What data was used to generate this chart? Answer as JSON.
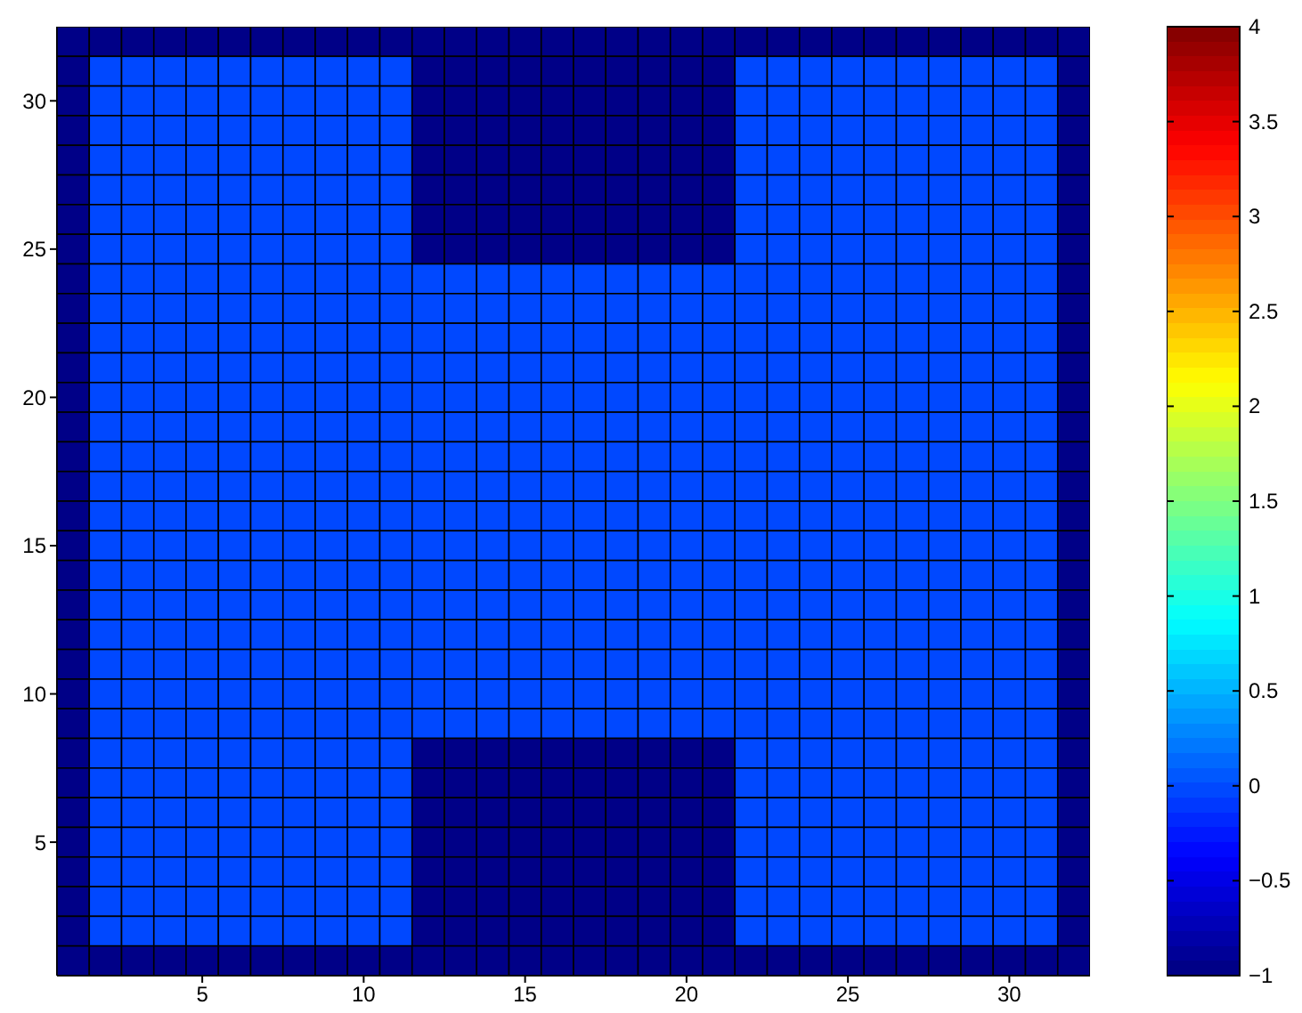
{
  "chart_data": {
    "type": "heatmap",
    "categories": [
      null,
      null,
      null,
      null,
      "5",
      null,
      null,
      null,
      null,
      "10",
      null,
      null,
      null,
      null,
      "15",
      null,
      null,
      null,
      null,
      "20",
      null,
      null,
      null,
      null,
      "25",
      null,
      null,
      null,
      null,
      "30",
      null,
      null
    ],
    "y_categories": [
      null,
      null,
      "30",
      null,
      null,
      null,
      null,
      "25",
      null,
      null,
      null,
      null,
      "20",
      null,
      null,
      null,
      null,
      "15",
      null,
      null,
      null,
      null,
      "10",
      null,
      null,
      null,
      null,
      "5",
      null,
      null,
      null,
      null
    ],
    "clim": [
      -1,
      4
    ],
    "cticks": [
      {
        "value": -1,
        "label": "−1"
      },
      {
        "value": -0.5,
        "label": "−0.5"
      },
      0,
      0.5,
      1,
      1.5,
      2,
      2.5,
      3,
      3.5,
      4
    ],
    "cells": [
      [
        -1,
        -1,
        -1,
        -1,
        -1,
        -1,
        -1,
        -1,
        -1,
        -1,
        -1,
        -1,
        -1,
        -1,
        -1,
        -1,
        -1,
        -1,
        -1,
        -1,
        -1,
        -1,
        -1,
        -1,
        -1,
        -1,
        -1,
        -1,
        -1,
        -1,
        -1,
        -1
      ],
      [
        -1,
        0,
        0,
        0,
        0,
        0,
        0,
        0,
        0,
        0,
        0,
        -1,
        -1,
        -1,
        -1,
        -1,
        -1,
        -1,
        -1,
        -1,
        -1,
        0,
        0,
        0,
        0,
        0,
        0,
        0,
        0,
        0,
        0,
        -1
      ],
      [
        -1,
        0,
        0,
        0,
        0,
        0,
        0,
        0,
        0,
        0,
        0,
        -1,
        -1,
        -1,
        -1,
        -1,
        -1,
        -1,
        -1,
        -1,
        -1,
        0,
        0,
        0,
        0,
        0,
        0,
        0,
        0,
        0,
        0,
        -1
      ],
      [
        -1,
        0,
        0,
        0,
        0,
        0,
        0,
        0,
        0,
        0,
        0,
        -1,
        -1,
        -1,
        -1,
        -1,
        -1,
        -1,
        -1,
        -1,
        -1,
        0,
        0,
        0,
        0,
        0,
        0,
        0,
        0,
        0,
        0,
        -1
      ],
      [
        -1,
        0,
        0,
        0,
        0,
        0,
        0,
        0,
        0,
        0,
        0,
        -1,
        -1,
        -1,
        -1,
        -1,
        -1,
        -1,
        -1,
        -1,
        -1,
        0,
        0,
        0,
        0,
        0,
        0,
        0,
        0,
        0,
        0,
        -1
      ],
      [
        -1,
        0,
        0,
        0,
        0,
        0,
        0,
        0,
        0,
        0,
        0,
        -1,
        -1,
        -1,
        -1,
        -1,
        -1,
        -1,
        -1,
        -1,
        -1,
        0,
        0,
        0,
        0,
        0,
        0,
        0,
        0,
        0,
        0,
        -1
      ],
      [
        -1,
        0,
        0,
        0,
        0,
        0,
        0,
        0,
        0,
        0,
        0,
        -1,
        -1,
        -1,
        -1,
        -1,
        -1,
        -1,
        -1,
        -1,
        -1,
        0,
        0,
        0,
        0,
        0,
        0,
        0,
        0,
        0,
        0,
        -1
      ],
      [
        -1,
        0,
        0,
        0,
        0,
        0,
        0,
        0,
        0,
        0,
        0,
        -1,
        -1,
        -1,
        -1,
        -1,
        -1,
        -1,
        -1,
        -1,
        -1,
        0,
        0,
        0,
        0,
        0,
        0,
        0,
        0,
        0,
        0,
        -1
      ],
      [
        -1,
        0,
        0,
        0,
        0,
        0,
        0,
        0,
        0,
        0,
        0,
        0,
        0,
        0,
        0,
        0,
        0,
        0,
        0,
        0,
        0,
        0,
        0,
        0,
        0,
        0,
        0,
        0,
        0,
        0,
        0,
        -1
      ],
      [
        -1,
        0,
        0,
        0,
        0,
        0,
        0,
        0,
        0,
        0,
        0,
        0,
        0,
        0,
        0,
        0,
        0,
        0,
        0,
        0,
        0,
        0,
        0,
        0,
        0,
        0,
        0,
        0,
        0,
        0,
        0,
        -1
      ],
      [
        -1,
        0,
        0,
        0,
        0,
        0,
        0,
        0,
        0,
        0,
        0,
        0,
        0,
        0,
        0,
        0,
        0,
        0,
        0,
        0,
        0,
        0,
        0,
        0,
        0,
        0,
        0,
        0,
        0,
        0,
        0,
        -1
      ],
      [
        -1,
        0,
        0,
        0,
        0,
        0,
        0,
        0,
        0,
        0,
        0,
        0,
        0,
        0,
        0,
        0,
        0,
        0,
        0,
        0,
        0,
        0,
        0,
        0,
        0,
        0,
        0,
        0,
        0,
        0,
        0,
        -1
      ],
      [
        -1,
        0,
        0,
        0,
        0,
        0,
        0,
        0,
        0,
        0,
        0,
        0,
        0,
        0,
        0,
        0,
        0,
        0,
        0,
        0,
        0,
        0,
        0,
        0,
        0,
        0,
        0,
        0,
        0,
        0,
        0,
        -1
      ],
      [
        -1,
        0,
        0,
        0,
        0,
        0,
        0,
        0,
        0,
        0,
        0,
        0,
        0,
        0,
        0,
        0,
        0,
        0,
        0,
        0,
        0,
        0,
        0,
        0,
        0,
        0,
        0,
        0,
        0,
        0,
        0,
        -1
      ],
      [
        -1,
        0,
        0,
        0,
        0,
        0,
        0,
        0,
        0,
        0,
        0,
        0,
        0,
        0,
        0,
        0,
        0,
        0,
        0,
        0,
        0,
        0,
        0,
        0,
        0,
        0,
        0,
        0,
        0,
        0,
        0,
        -1
      ],
      [
        -1,
        0,
        0,
        0,
        0,
        0,
        0,
        0,
        0,
        0,
        0,
        0,
        0,
        0,
        0,
        0,
        0,
        0,
        0,
        0,
        0,
        0,
        0,
        0,
        0,
        0,
        0,
        0,
        0,
        0,
        0,
        -1
      ],
      [
        -1,
        0,
        0,
        0,
        0,
        0,
        0,
        0,
        0,
        0,
        0,
        0,
        0,
        0,
        0,
        0,
        0,
        0,
        0,
        0,
        0,
        0,
        0,
        0,
        0,
        0,
        0,
        0,
        0,
        0,
        0,
        -1
      ],
      [
        -1,
        0,
        0,
        0,
        0,
        0,
        0,
        0,
        0,
        0,
        0,
        0,
        0,
        0,
        0,
        0,
        0,
        0,
        0,
        0,
        0,
        0,
        0,
        0,
        0,
        0,
        0,
        0,
        0,
        0,
        0,
        -1
      ],
      [
        -1,
        0,
        0,
        0,
        0,
        0,
        0,
        0,
        0,
        0,
        0,
        0,
        0,
        0,
        0,
        0,
        0,
        0,
        0,
        0,
        0,
        0,
        0,
        0,
        0,
        0,
        0,
        0,
        0,
        0,
        0,
        -1
      ],
      [
        -1,
        0,
        0,
        0,
        0,
        0,
        0,
        0,
        0,
        0,
        0,
        0,
        0,
        0,
        0,
        0,
        0,
        0,
        0,
        0,
        0,
        0,
        0,
        0,
        0,
        0,
        0,
        0,
        0,
        0,
        0,
        -1
      ],
      [
        -1,
        0,
        0,
        0,
        0,
        0,
        0,
        0,
        0,
        0,
        0,
        0,
        0,
        0,
        0,
        0,
        0,
        0,
        0,
        0,
        0,
        0,
        0,
        0,
        0,
        0,
        0,
        0,
        0,
        0,
        0,
        -1
      ],
      [
        -1,
        0,
        0,
        0,
        0,
        0,
        0,
        0,
        0,
        0,
        0,
        0,
        0,
        0,
        0,
        0,
        0,
        0,
        0,
        0,
        0,
        0,
        0,
        0,
        0,
        0,
        0,
        0,
        0,
        0,
        0,
        -1
      ],
      [
        -1,
        0,
        0,
        0,
        0,
        0,
        0,
        0,
        0,
        0,
        0,
        0,
        0,
        0,
        0,
        0,
        0,
        0,
        0,
        0,
        0,
        0,
        0,
        0,
        0,
        0,
        0,
        0,
        0,
        0,
        0,
        -1
      ],
      [
        -1,
        0,
        0,
        0,
        0,
        0,
        0,
        0,
        0,
        0,
        0,
        0,
        0,
        0,
        0,
        0,
        0,
        0,
        0,
        0,
        0,
        0,
        0,
        0,
        0,
        0,
        0,
        0,
        0,
        0,
        0,
        -1
      ],
      [
        -1,
        0,
        0,
        0,
        0,
        0,
        0,
        0,
        0,
        0,
        0,
        -1,
        -1,
        -1,
        -1,
        -1,
        -1,
        -1,
        -1,
        -1,
        -1,
        0,
        0,
        0,
        0,
        0,
        0,
        0,
        0,
        0,
        0,
        -1
      ],
      [
        -1,
        0,
        0,
        0,
        0,
        0,
        0,
        0,
        0,
        0,
        0,
        -1,
        -1,
        -1,
        -1,
        -1,
        -1,
        -1,
        -1,
        -1,
        -1,
        0,
        0,
        0,
        0,
        0,
        0,
        0,
        0,
        0,
        0,
        -1
      ],
      [
        -1,
        0,
        0,
        0,
        0,
        0,
        0,
        0,
        0,
        0,
        0,
        -1,
        -1,
        -1,
        -1,
        -1,
        -1,
        -1,
        -1,
        -1,
        -1,
        0,
        0,
        0,
        0,
        0,
        0,
        0,
        0,
        0,
        0,
        -1
      ],
      [
        -1,
        0,
        0,
        0,
        0,
        0,
        0,
        0,
        0,
        0,
        0,
        -1,
        -1,
        -1,
        -1,
        -1,
        -1,
        -1,
        -1,
        -1,
        -1,
        0,
        0,
        0,
        0,
        0,
        0,
        0,
        0,
        0,
        0,
        -1
      ],
      [
        -1,
        0,
        0,
        0,
        0,
        0,
        0,
        0,
        0,
        0,
        0,
        -1,
        -1,
        -1,
        -1,
        -1,
        -1,
        -1,
        -1,
        -1,
        -1,
        0,
        0,
        0,
        0,
        0,
        0,
        0,
        0,
        0,
        0,
        -1
      ],
      [
        -1,
        0,
        0,
        0,
        0,
        0,
        0,
        0,
        0,
        0,
        0,
        -1,
        -1,
        -1,
        -1,
        -1,
        -1,
        -1,
        -1,
        -1,
        -1,
        0,
        0,
        0,
        0,
        0,
        0,
        0,
        0,
        0,
        0,
        -1
      ],
      [
        -1,
        0,
        0,
        0,
        0,
        0,
        0,
        0,
        0,
        0,
        0,
        -1,
        -1,
        -1,
        -1,
        -1,
        -1,
        -1,
        -1,
        -1,
        -1,
        0,
        0,
        0,
        0,
        0,
        0,
        0,
        0,
        0,
        0,
        -1
      ],
      [
        -1,
        -1,
        -1,
        -1,
        -1,
        -1,
        -1,
        -1,
        -1,
        -1,
        -1,
        -1,
        -1,
        -1,
        -1,
        -1,
        -1,
        -1,
        -1,
        -1,
        -1,
        -1,
        -1,
        -1,
        -1,
        -1,
        -1,
        -1,
        -1,
        -1,
        -1,
        -1
      ]
    ]
  }
}
